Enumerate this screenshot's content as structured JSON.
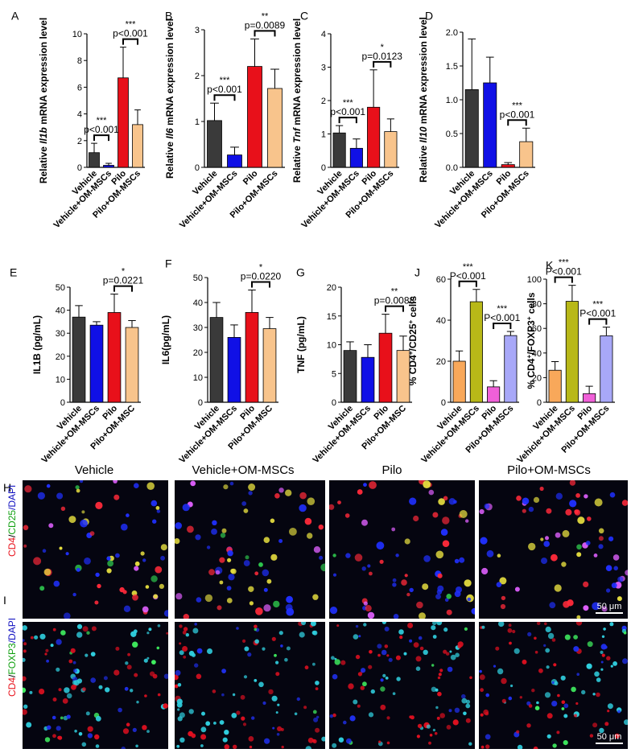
{
  "chart_data": [
    {
      "id": "A",
      "panel_label": "A",
      "type": "bar",
      "title": "",
      "xlabel": "",
      "ylabel": "Relative Il1b mRNA expression level",
      "ylabel_parts": [
        [
          "Relative ",
          false
        ],
        [
          "Il1b",
          true
        ],
        [
          " mRNA expression level",
          false
        ]
      ],
      "categories": [
        "Vehicle",
        "Vehicle+OM-MSCs",
        "Pilo",
        "Pilo+OM-MSCs"
      ],
      "values": [
        1.1,
        0.15,
        6.7,
        3.2
      ],
      "errors": [
        0.7,
        0.15,
        2.3,
        1.1
      ],
      "colors": [
        "#3a3a3a",
        "#1010e6",
        "#e8101a",
        "#f8c48c"
      ],
      "ylim": [
        0,
        10
      ],
      "yticks": [
        0,
        2,
        4,
        6,
        8,
        10
      ],
      "tick_labels": [
        "0",
        "2",
        "4",
        "6",
        "8",
        "10"
      ],
      "annotations": [
        {
          "from": 0,
          "to": 1,
          "stars": "***",
          "p": "p<0.001"
        },
        {
          "from": 2,
          "to": 3,
          "stars": "***",
          "p": "p<0.001"
        }
      ]
    },
    {
      "id": "B",
      "panel_label": "B",
      "type": "bar",
      "title": "",
      "xlabel": "",
      "ylabel": "Relative Il6 mRNA expression level",
      "ylabel_parts": [
        [
          "Relative ",
          false
        ],
        [
          "Il6",
          true
        ],
        [
          " mRNA expression level",
          false
        ]
      ],
      "categories": [
        "Vehicle",
        "Vehicle+OM-MSCs",
        "Pilo",
        "Pilo+OM-MSCs"
      ],
      "values": [
        1.02,
        0.27,
        2.2,
        1.72
      ],
      "errors": [
        0.38,
        0.17,
        0.6,
        0.42
      ],
      "colors": [
        "#3a3a3a",
        "#1010e6",
        "#e8101a",
        "#f8c48c"
      ],
      "ylim": [
        0,
        3
      ],
      "yticks": [
        0,
        1,
        2,
        3
      ],
      "tick_labels": [
        "0",
        "1",
        "2",
        "3"
      ],
      "annotations": [
        {
          "from": 0,
          "to": 1,
          "stars": "***",
          "p": "p<0.001"
        },
        {
          "from": 2,
          "to": 3,
          "stars": "**",
          "p": "p=0.0089"
        }
      ]
    },
    {
      "id": "C",
      "panel_label": "C",
      "type": "bar",
      "title": "",
      "xlabel": "",
      "ylabel": "Relative Tnf mRNA expression level",
      "ylabel_parts": [
        [
          "Relative ",
          false
        ],
        [
          "Tnf",
          true
        ],
        [
          " mRNA expression level",
          false
        ]
      ],
      "categories": [
        "Vehicle",
        "Vehicle+OM-MSCs",
        "Pilo",
        "Pilo+OM-MSCs"
      ],
      "values": [
        1.03,
        0.57,
        1.8,
        1.07
      ],
      "errors": [
        0.22,
        0.28,
        1.12,
        0.38
      ],
      "colors": [
        "#3a3a3a",
        "#1010e6",
        "#e8101a",
        "#f8c48c"
      ],
      "ylim": [
        0,
        4
      ],
      "yticks": [
        0,
        1,
        2,
        3,
        4
      ],
      "tick_labels": [
        "0",
        "1",
        "2",
        "3",
        "4"
      ],
      "annotations": [
        {
          "from": 0,
          "to": 1,
          "stars": "***",
          "p": "p<0.001"
        },
        {
          "from": 2,
          "to": 3,
          "stars": "*",
          "p": "p=0.0123"
        }
      ]
    },
    {
      "id": "D",
      "panel_label": "D",
      "type": "bar",
      "title": "",
      "xlabel": "",
      "ylabel": "Relative Il10 mRNA expression level",
      "ylabel_parts": [
        [
          "Relative ",
          false
        ],
        [
          "Il10",
          true
        ],
        [
          " mRNA expression level",
          false
        ]
      ],
      "categories": [
        "Vehicle",
        "Vehicle+OM-MSCs",
        "Pilo",
        "Pilo+OM-MSCs"
      ],
      "values": [
        1.15,
        1.25,
        0.04,
        0.38
      ],
      "errors": [
        0.75,
        0.38,
        0.03,
        0.2
      ],
      "colors": [
        "#3a3a3a",
        "#1010e6",
        "#e8101a",
        "#f8c48c"
      ],
      "ylim": [
        0,
        2
      ],
      "yticks": [
        0,
        0.5,
        1,
        1.5,
        2
      ],
      "tick_labels": [
        "0.0",
        "0.5",
        "1.0",
        "1.5",
        "2.0"
      ],
      "annotations": [
        {
          "from": 2,
          "to": 3,
          "stars": "***",
          "p": "p<0.001"
        }
      ]
    },
    {
      "id": "E",
      "panel_label": "E",
      "type": "bar",
      "title": "",
      "xlabel": "",
      "ylabel": "IL1B (pg/mL)",
      "ylabel_parts": [
        [
          "IL1B (pg/mL)",
          false
        ]
      ],
      "categories": [
        "Vehicle",
        "Vehicle+OM-MSCs",
        "Pilo",
        "Pilo+OM-MSC"
      ],
      "values": [
        37,
        33.5,
        39,
        32.5
      ],
      "errors": [
        5,
        1.5,
        8,
        3
      ],
      "colors": [
        "#3a3a3a",
        "#1010e6",
        "#e8101a",
        "#f8c48c"
      ],
      "ylim": [
        0,
        50
      ],
      "yticks": [
        0,
        10,
        20,
        30,
        40,
        50
      ],
      "tick_labels": [
        "0",
        "10",
        "20",
        "30",
        "40",
        "50"
      ],
      "annotations": [
        {
          "from": 2,
          "to": 3,
          "stars": "*",
          "p": "p=0.0221"
        }
      ]
    },
    {
      "id": "F",
      "panel_label": "F",
      "type": "bar",
      "title": "",
      "xlabel": "",
      "ylabel": "IL6(pg/mL)",
      "ylabel_parts": [
        [
          "IL6(pg/mL)",
          false
        ]
      ],
      "categories": [
        "Vehicle",
        "Vehicle+OM-MSCs",
        "Pilo",
        "Pilo+OM-MSC"
      ],
      "values": [
        34,
        26,
        36,
        29.5
      ],
      "errors": [
        6,
        5,
        9,
        4.5
      ],
      "colors": [
        "#3a3a3a",
        "#1010e6",
        "#e8101a",
        "#f8c48c"
      ],
      "ylim": [
        0,
        50
      ],
      "yticks": [
        0,
        10,
        20,
        30,
        40,
        50
      ],
      "tick_labels": [
        "0",
        "10",
        "20",
        "30",
        "40",
        "50"
      ],
      "annotations": [
        {
          "from": 2,
          "to": 3,
          "stars": "*",
          "p": "p=0.0220"
        }
      ]
    },
    {
      "id": "G",
      "panel_label": "G",
      "type": "bar",
      "title": "",
      "xlabel": "",
      "ylabel": "TNF (pg/mL)",
      "ylabel_parts": [
        [
          "TNF (pg/mL)",
          false
        ]
      ],
      "categories": [
        "Vehicle",
        "Vehicle+OM-MSCs",
        "Pilo",
        "Pilo+OM-MSC"
      ],
      "values": [
        9,
        7.8,
        12,
        9
      ],
      "errors": [
        1.5,
        2.2,
        3.3,
        2.5
      ],
      "colors": [
        "#3a3a3a",
        "#1010e6",
        "#e8101a",
        "#f8c48c"
      ],
      "ylim": [
        0,
        20
      ],
      "yticks": [
        0,
        5,
        10,
        15,
        20
      ],
      "tick_labels": [
        "0",
        "5",
        "10",
        "15",
        "20"
      ],
      "annotations": [
        {
          "from": 2,
          "to": 3,
          "stars": "**",
          "p": "p=0.0088"
        }
      ]
    },
    {
      "id": "J",
      "panel_label": "J",
      "type": "bar",
      "title": "",
      "xlabel": "",
      "ylabel": "% CD4+/CD25+ cells",
      "ylabel_parts": [
        [
          "% CD4",
          false
        ],
        [
          "+",
          false,
          "sup"
        ],
        [
          "/CD25",
          false
        ],
        [
          "+",
          false,
          "sup"
        ],
        [
          " cells",
          false
        ]
      ],
      "categories": [
        "Vehicle",
        "Vehicle+OM-MSCs",
        "Pilo",
        "Pilo+OM-MSCs"
      ],
      "values": [
        20,
        49,
        7.5,
        32.5
      ],
      "errors": [
        5,
        6,
        3,
        2
      ],
      "colors": [
        "#f8a85a",
        "#b8b818",
        "#f060d8",
        "#a8a8f8"
      ],
      "ylim": [
        0,
        60
      ],
      "yticks": [
        0,
        20,
        40,
        60
      ],
      "tick_labels": [
        "0",
        "20",
        "40",
        "60"
      ],
      "annotations": [
        {
          "from": 0,
          "to": 1,
          "stars": "***",
          "p": "P<0.001"
        },
        {
          "from": 2,
          "to": 3,
          "stars": "***",
          "p": "P<0.001"
        }
      ]
    },
    {
      "id": "K",
      "panel_label": "K",
      "type": "bar",
      "title": "",
      "xlabel": "",
      "ylabel": "% CD4+/FOXP3+ cells",
      "ylabel_parts": [
        [
          "% CD4",
          false
        ],
        [
          "+",
          false,
          "sup"
        ],
        [
          "/FOXP3",
          false
        ],
        [
          "+",
          false,
          "sup"
        ],
        [
          " cells",
          false
        ]
      ],
      "categories": [
        "Vehicle",
        "Vehicle+OM-MSCs",
        "Pilo",
        "Pilo+OM-MSCs"
      ],
      "values": [
        26,
        82,
        7,
        54
      ],
      "errors": [
        7,
        13,
        6,
        7
      ],
      "colors": [
        "#f8a85a",
        "#b8b818",
        "#f060d8",
        "#a8a8f8"
      ],
      "ylim": [
        0,
        100
      ],
      "yticks": [
        0,
        20,
        40,
        60,
        80,
        100
      ],
      "tick_labels": [
        "0",
        "20",
        "40",
        "60",
        "80",
        "100"
      ],
      "annotations": [
        {
          "from": 0,
          "to": 1,
          "stars": "***",
          "p": "P<0.001"
        },
        {
          "from": 2,
          "to": 3,
          "stars": "***",
          "p": "P<0.001"
        }
      ]
    }
  ],
  "micrographs": {
    "panel_H": "H",
    "panel_I": "I",
    "columns": [
      "Vehicle",
      "Vehicle+OM-MSCs",
      "Pilo",
      "Pilo+OM-MSCs"
    ],
    "row_H_label": [
      [
        "CD4",
        "#e8101a"
      ],
      [
        "/",
        "#000000"
      ],
      [
        "CD25",
        "#10a010"
      ],
      [
        "/DAPI",
        "#1010c0"
      ]
    ],
    "row_I_label": [
      [
        "CD4",
        "#e8101a"
      ],
      [
        "/",
        "#000000"
      ],
      [
        "FOXP3",
        "#10a010"
      ],
      [
        "/DAPI",
        "#1010c0"
      ]
    ],
    "scale_bar": "50 μm"
  }
}
